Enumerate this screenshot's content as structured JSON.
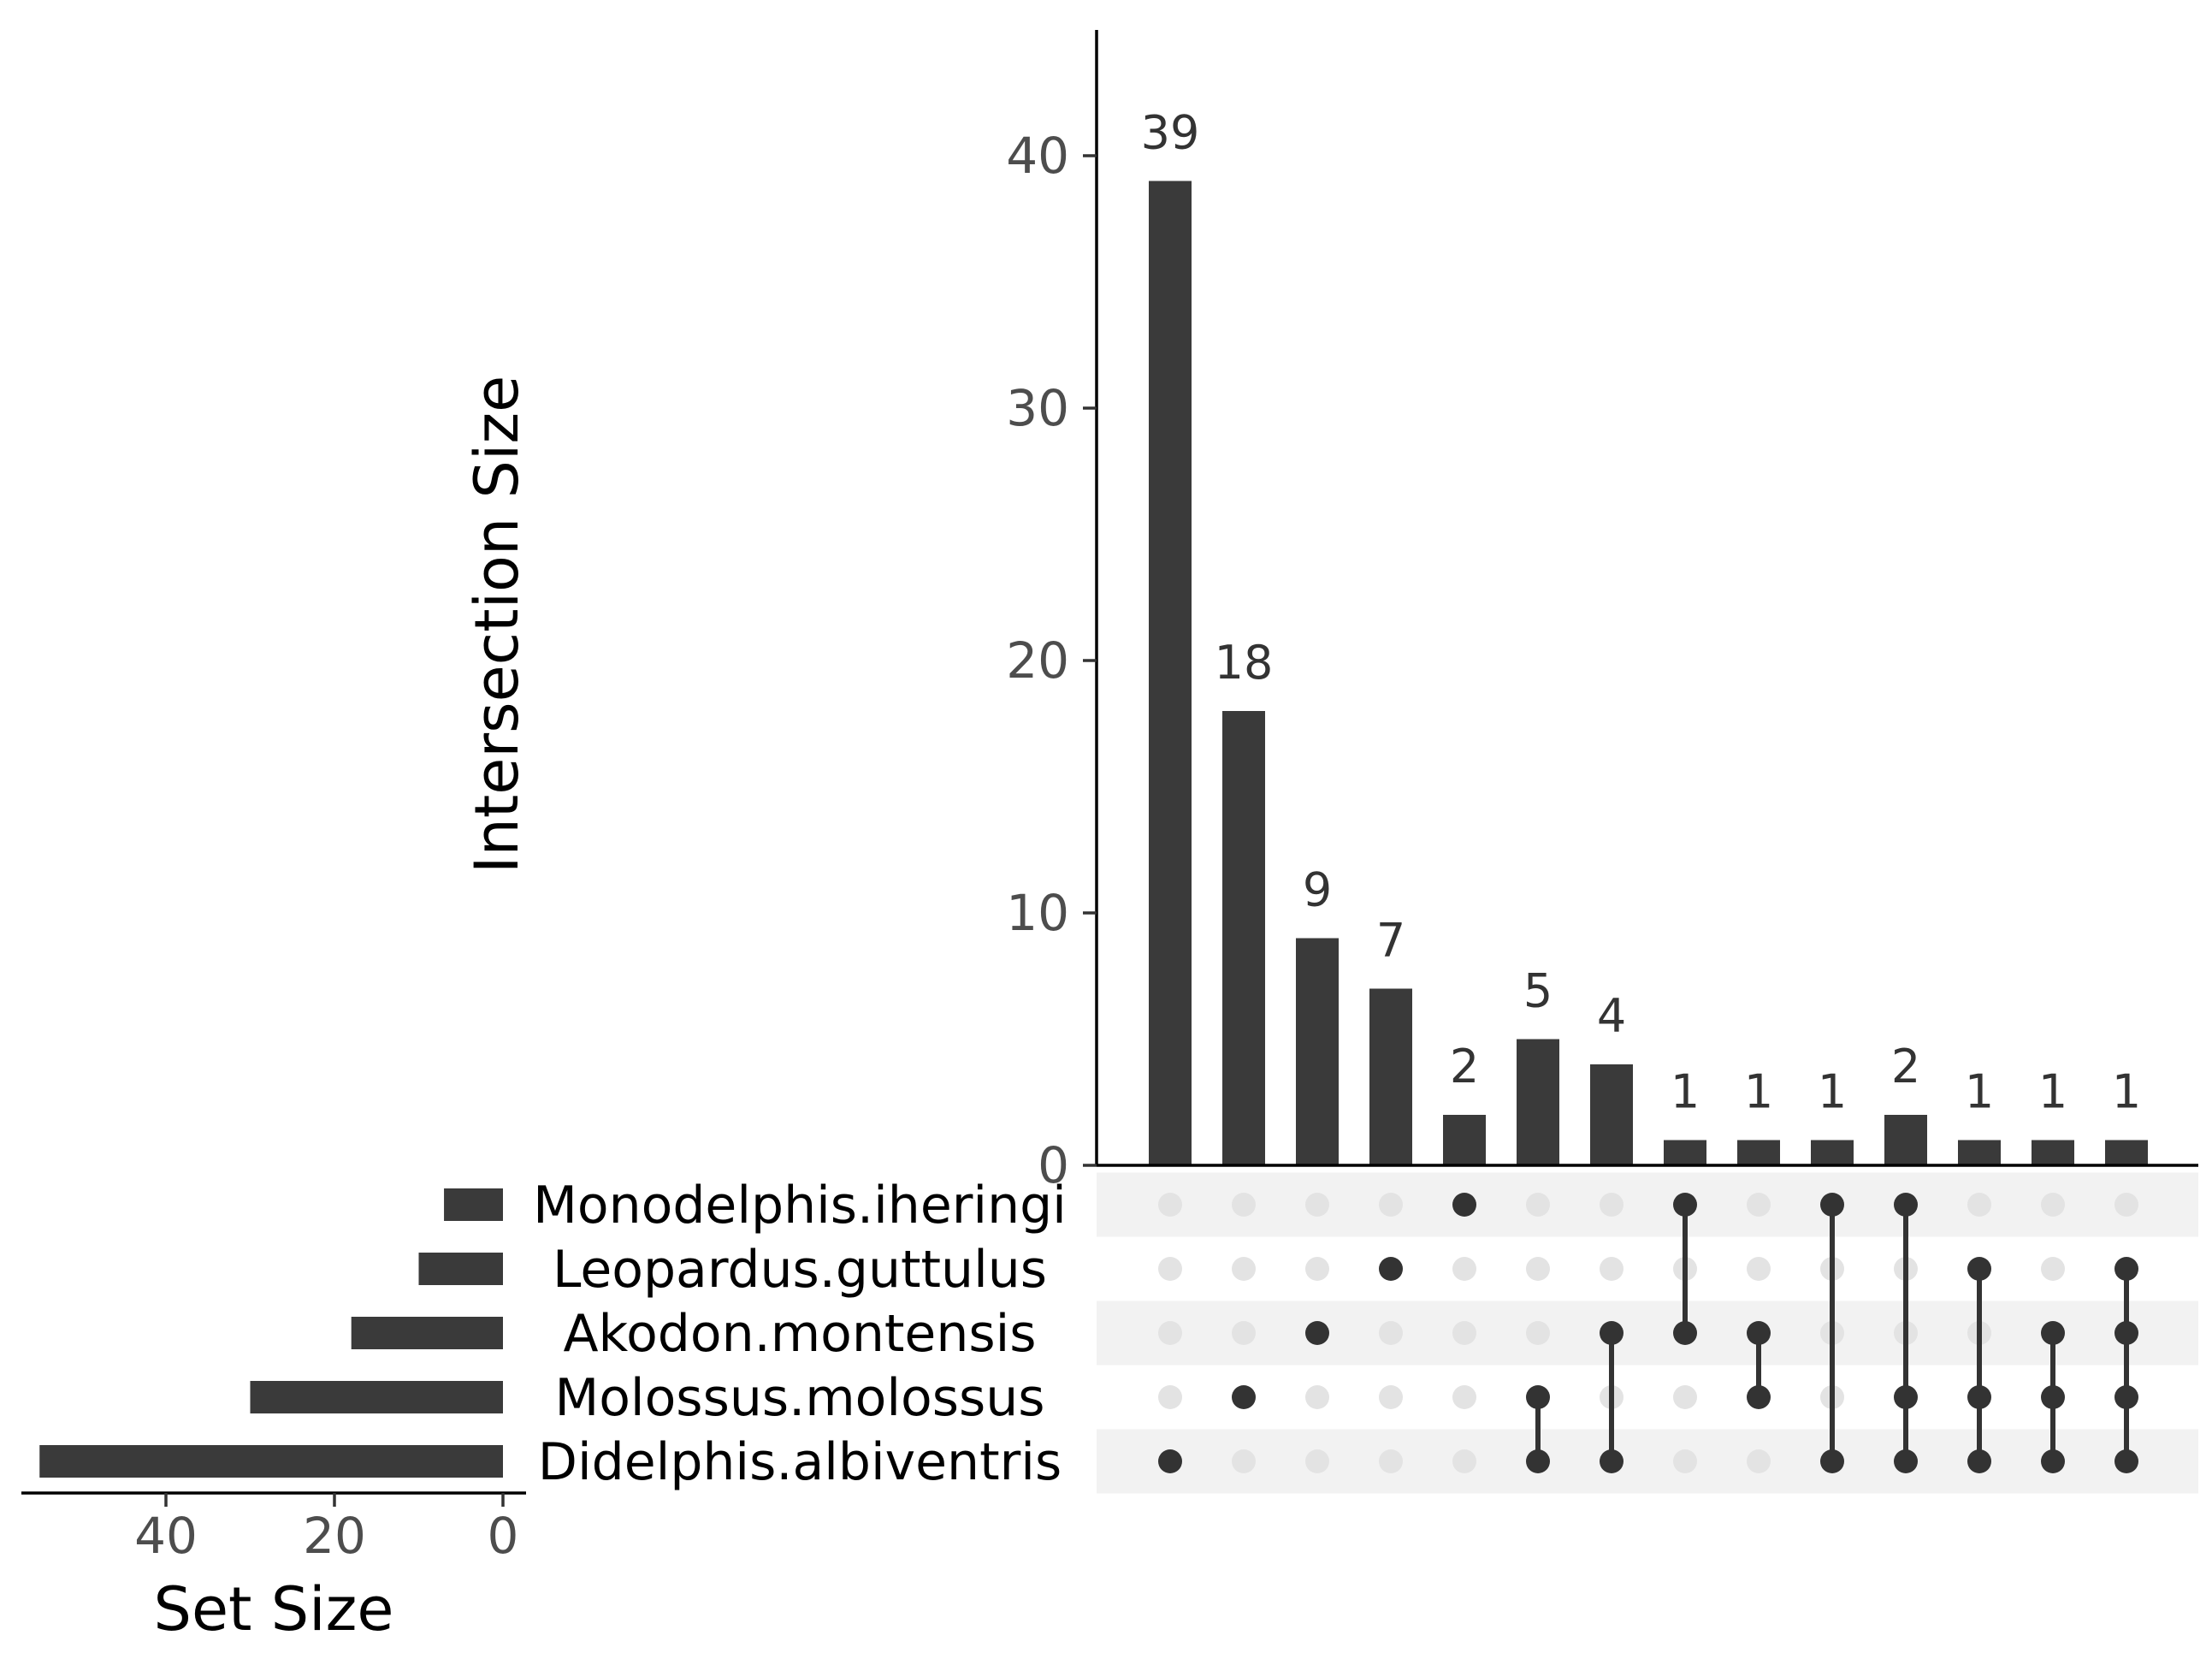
{
  "chart_data": {
    "type": "upset",
    "colors": {
      "bar": "#3a3a3a",
      "dot_active": "#333333",
      "dot_inactive": "#e3e3e3",
      "stripe": "#f2f2f2",
      "axis": "#000000",
      "tick_text": "#4d4d4d"
    },
    "intersection_axis": {
      "title": "Intersection Size",
      "ylim": [
        0,
        45
      ],
      "ticks": [
        0,
        10,
        20,
        30,
        40
      ]
    },
    "set_size_axis": {
      "title": "Set Size",
      "ticks": [
        40,
        20,
        0
      ],
      "xlim": [
        0,
        57
      ]
    },
    "sets": [
      {
        "name": "Monodelphis.iheringi",
        "size": 7
      },
      {
        "name": "Leopardus.guttulus",
        "size": 10
      },
      {
        "name": "Akodon.montensis",
        "size": 18
      },
      {
        "name": "Molossus.molossus",
        "size": 30
      },
      {
        "name": "Didelphis.albiventris",
        "size": 55
      }
    ],
    "intersections": [
      {
        "size": 39,
        "label": "39",
        "members": [
          "Didelphis.albiventris"
        ]
      },
      {
        "size": 18,
        "label": "18",
        "members": [
          "Molossus.molossus"
        ]
      },
      {
        "size": 9,
        "label": "9",
        "members": [
          "Akodon.montensis"
        ]
      },
      {
        "size": 7,
        "label": "7",
        "members": [
          "Leopardus.guttulus"
        ]
      },
      {
        "size": 2,
        "label": "2",
        "members": [
          "Monodelphis.iheringi"
        ]
      },
      {
        "size": 5,
        "label": "5",
        "members": [
          "Molossus.molossus",
          "Didelphis.albiventris"
        ]
      },
      {
        "size": 4,
        "label": "4",
        "members": [
          "Akodon.montensis",
          "Didelphis.albiventris"
        ]
      },
      {
        "size": 1,
        "label": "1",
        "members": [
          "Monodelphis.iheringi",
          "Akodon.montensis"
        ]
      },
      {
        "size": 1,
        "label": "1",
        "members": [
          "Akodon.montensis",
          "Molossus.molossus"
        ]
      },
      {
        "size": 1,
        "label": "1",
        "members": [
          "Monodelphis.iheringi",
          "Didelphis.albiventris"
        ]
      },
      {
        "size": 2,
        "label": "2",
        "members": [
          "Monodelphis.iheringi",
          "Molossus.molossus",
          "Didelphis.albiventris"
        ]
      },
      {
        "size": 1,
        "label": "1",
        "members": [
          "Leopardus.guttulus",
          "Molossus.molossus",
          "Didelphis.albiventris"
        ]
      },
      {
        "size": 1,
        "label": "1",
        "members": [
          "Akodon.montensis",
          "Molossus.molossus",
          "Didelphis.albiventris"
        ]
      },
      {
        "size": 1,
        "label": "1",
        "members": [
          "Leopardus.guttulus",
          "Akodon.montensis",
          "Molossus.molossus",
          "Didelphis.albiventris"
        ]
      }
    ]
  }
}
